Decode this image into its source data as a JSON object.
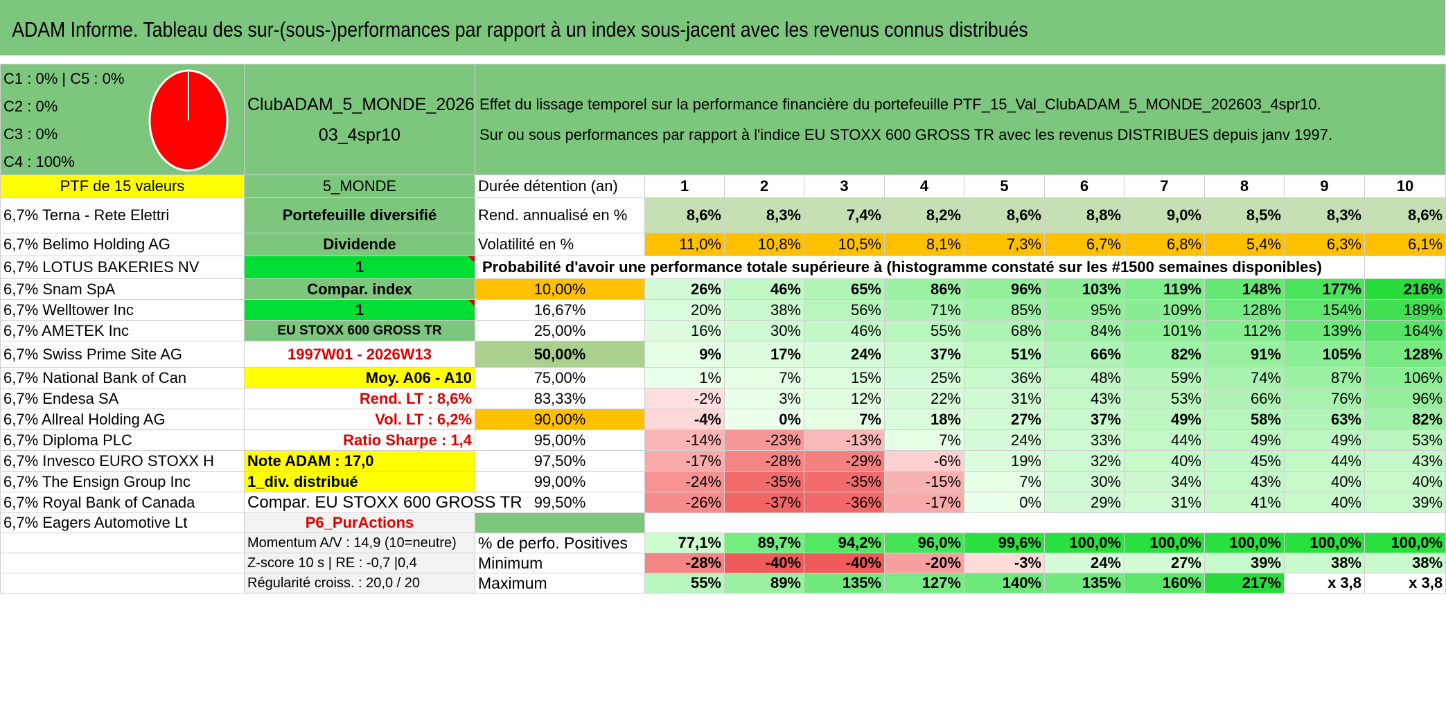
{
  "title": "ADAM Informe. Tableau des sur-(sous-)performances par rapport à un index sous-jacent avec les revenus connus distribués",
  "legend": [
    "C1 : 0% | C5 : 0%",
    "C2 : 0%",
    "C3 : 0%",
    "C4 : 100%"
  ],
  "pie_color": "#ff0000",
  "portfolio_name": "ClubADAM_5_MONDE_202603_4spr10",
  "portfolio_name_lines": [
    "ClubADAM_5_MONDE_2026",
    "03_4spr10"
  ],
  "description": [
    "Effet du lissage temporel sur la performance financière du portefeuille PTF_15_Val_ClubADAM_5_MONDE_202603_4spr10.",
    "Sur ou sous performances par rapport à l'indice EU STOXX 600 GROSS TR avec les revenus DISTRIBUES depuis janv 1997."
  ],
  "ptf_label": "PTF de 15 valeurs",
  "zone": "5_MONDE",
  "holding_label": "Durée détention (an)",
  "years": [
    "1",
    "2",
    "3",
    "4",
    "5",
    "6",
    "7",
    "8",
    "9",
    "10"
  ],
  "stocks": [
    "6,7% Terna - Rete Elettri",
    "6,7% Belimo Holding AG",
    "6,7% LOTUS BAKERIES NV",
    "6,7% Snam SpA",
    "6,7% Welltower Inc",
    "6,7% AMETEK Inc",
    "6,7% Swiss Prime Site AG",
    "6,7% National Bank of Can",
    "6,7% Endesa SA",
    "6,7% Allreal Holding AG",
    "6,7% Diploma PLC",
    "6,7% Invesco EURO STOXX H",
    "6,7% The Ensign Group Inc",
    "6,7% Royal Bank of Canada",
    "6,7% Eagers Automotive Lt"
  ],
  "info": [
    "Portefeuille diversifié",
    "Dividende",
    "1",
    "Compar. index",
    "1",
    "EU STOXX 600 GROSS TR",
    "1997W01 - 2026W13",
    "Moy. A06 - A10",
    "Rend. LT : 8,6%",
    "Vol. LT : 6,2%",
    "Ratio Sharpe : 1,4",
    "Note ADAM : 17,0",
    "1_div. distribué",
    "Compar. EU STOXX 600 GROSS TR",
    "P6_PurActions"
  ],
  "rend": {
    "label": "Rend. annualisé en %",
    "values": [
      "8,6%",
      "8,3%",
      "7,4%",
      "8,2%",
      "8,6%",
      "8,8%",
      "9,0%",
      "8,5%",
      "8,3%",
      "8,6%"
    ]
  },
  "vol": {
    "label": "Volatilité en %",
    "values": [
      "11,0%",
      "10,8%",
      "10,5%",
      "8,1%",
      "7,3%",
      "6,7%",
      "6,8%",
      "5,4%",
      "6,3%",
      "6,1%"
    ]
  },
  "prob_title": "Probabilité d'avoir une performance totale supérieure à (histogramme constaté sur les #1500 semaines disponibles)",
  "prob_rows": [
    {
      "p": "10,00%",
      "values": [
        "26%",
        "46%",
        "65%",
        "86%",
        "96%",
        "103%",
        "119%",
        "148%",
        "177%",
        "216%"
      ]
    },
    {
      "p": "16,67%",
      "values": [
        "20%",
        "38%",
        "56%",
        "71%",
        "85%",
        "95%",
        "109%",
        "128%",
        "154%",
        "189%"
      ]
    },
    {
      "p": "25,00%",
      "values": [
        "16%",
        "30%",
        "46%",
        "55%",
        "68%",
        "84%",
        "101%",
        "112%",
        "139%",
        "164%"
      ]
    },
    {
      "p": "50,00%",
      "values": [
        "9%",
        "17%",
        "24%",
        "37%",
        "51%",
        "66%",
        "82%",
        "91%",
        "105%",
        "128%"
      ]
    },
    {
      "p": "75,00%",
      "values": [
        "1%",
        "7%",
        "15%",
        "25%",
        "36%",
        "48%",
        "59%",
        "74%",
        "87%",
        "106%"
      ]
    },
    {
      "p": "83,33%",
      "values": [
        "-2%",
        "3%",
        "12%",
        "22%",
        "31%",
        "43%",
        "53%",
        "66%",
        "76%",
        "96%"
      ]
    },
    {
      "p": "90,00%",
      "values": [
        "-4%",
        "0%",
        "7%",
        "18%",
        "27%",
        "37%",
        "49%",
        "58%",
        "63%",
        "82%"
      ]
    },
    {
      "p": "95,00%",
      "values": [
        "-14%",
        "-23%",
        "-13%",
        "7%",
        "24%",
        "33%",
        "44%",
        "49%",
        "49%",
        "53%"
      ]
    },
    {
      "p": "97,50%",
      "values": [
        "-17%",
        "-28%",
        "-29%",
        "-6%",
        "19%",
        "32%",
        "40%",
        "45%",
        "44%",
        "43%"
      ]
    },
    {
      "p": "99,00%",
      "values": [
        "-24%",
        "-35%",
        "-35%",
        "-15%",
        "7%",
        "30%",
        "34%",
        "43%",
        "40%",
        "40%"
      ]
    },
    {
      "p": "99,50%",
      "values": [
        "-26%",
        "-37%",
        "-36%",
        "-17%",
        "0%",
        "29%",
        "31%",
        "41%",
        "40%",
        "39%"
      ]
    }
  ],
  "bottom": [
    {
      "left": "Momentum A/V : 14,9 (10=neutre)",
      "label": "% de perfo. Positives",
      "values": [
        "77,1%",
        "89,7%",
        "94,2%",
        "96,0%",
        "99,6%",
        "100,0%",
        "100,0%",
        "100,0%",
        "100,0%",
        "100,0%"
      ]
    },
    {
      "left": "Z-score 10 s | RE : -0,7 |0,4",
      "label": "Minimum",
      "values": [
        "-28%",
        "-40%",
        "-40%",
        "-20%",
        "-3%",
        "24%",
        "27%",
        "39%",
        "38%",
        "38%"
      ]
    },
    {
      "left": "Régularité croiss. : 20,0 / 20",
      "label": "Maximum",
      "values": [
        "55%",
        "89%",
        "135%",
        "127%",
        "140%",
        "135%",
        "160%",
        "217%",
        "x 3,8",
        "x 3,8"
      ]
    }
  ],
  "colors": {
    "banner": "#7dc67d",
    "yellow": "#ffff00",
    "orange": "#ffc000",
    "bright_green": "#00dd33",
    "red_text": "#e00000"
  }
}
